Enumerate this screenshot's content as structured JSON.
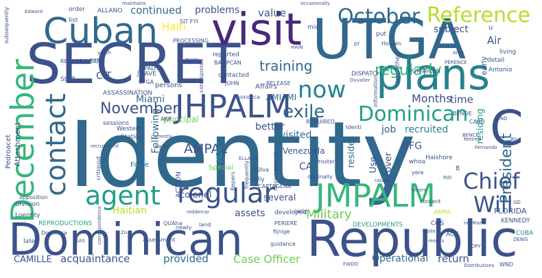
{
  "words": {
    "identity": "Identity",
    "secret": "SECRET",
    "utga": "UTGA",
    "dominican_republic_1": "Dominican",
    "dominican_republic_2": "Republic",
    "visit": "visit",
    "cuban": "Cuban",
    "plans": "plans",
    "jhpalm": "JHPALM",
    "jmpalm": "JMPALM",
    "december": "December",
    "regular": "regular",
    "agent": "agent",
    "contact": "contact",
    "october": "October",
    "reference": "Reference",
    "now": "now",
    "c": "C",
    "dominican": "Dominican",
    "chief": "Chief",
    "will": "Will",
    "president": "President",
    "november": "November",
    "exile": "exile",
    "military": "Military",
    "haiti": "Haiti",
    "ampal": "AMPAL",
    "training": "training",
    "regularly": "regularly",
    "continued": "continued",
    "problems": "problems",
    "value": "value",
    "subject": "subject",
    "air": "Air",
    "months": "Months",
    "time": "time",
    "miami": "Miami",
    "amiami": "AMIAMI",
    "following": "Following",
    "better": "better",
    "visited": "visited",
    "job": "job",
    "recruited": "recruited",
    "venezuela": "Venezuela",
    "resides": "resides",
    "ca": "CA",
    "ufg": "UFG",
    "use": "Use",
    "cover": "cover",
    "several": "several",
    "colonel": "colonel",
    "haitian": "Haitian",
    "assets": "assets",
    "acquaintance": "acquaintance",
    "provided": "provided",
    "case_officer": "Case Officer",
    "operational": "Operational",
    "return": "return",
    "camille": "CAMILLE",
    "cit": "CIT",
    "principal": "principal",
    "florida": "FLORIDA",
    "action": "ACTION",
    "force": "Force",
    "special": "Special",
    "hdc": "HDC",
    "kennedy": "KENNEDY",
    "cuba": "CUBA",
    "cos": "COS",
    "act": "ACT",
    "ampa": "AMPA",
    "developments": "DEVELOPMENTS",
    "reproductions": "REPRODUCTIONS",
    "division": "Division",
    "loentity": "Loentity",
    "later": "later",
    "attachment": "Attachment",
    "pedroacet": "Pedroacet",
    "sessions": "sessions",
    "assassination": "ASSASSINATION",
    "jmave": "JMAVE",
    "jhpalh": "JHPALH",
    "ufga": "UFGA",
    "persons": "persons",
    "staff": "Staff",
    "records": "RECORDS",
    "banh": "BANH",
    "processing": "PROCESSING",
    "sit_fyi": "SIT FYI",
    "allano": "ALLANO",
    "order": "order",
    "list": "list",
    "subsequently": "subsequently",
    "reported": "reported",
    "bampcan": "BAMPCAN",
    "contacted": "contacted",
    "john": "JOHN",
    "release": "RELEASE",
    "affairs": "Affairs",
    "corresponds": "corresponds",
    "konocca": "konocca",
    "dispatch": "DISPATCH",
    "mid": "mid",
    "put": "put",
    "strengthen": "strengthen",
    "honten": "Honten",
    "information": "information",
    "pominican": "POMINICAN",
    "antonio": "Antonio",
    "detail": "detail",
    "living": "living",
    "residing": "residing",
    "early": "early",
    "benoe": "BENOE",
    "card": "CARD",
    "u": "u",
    "required": "REQUIRED",
    "identi": "Identi",
    "prostene": "Prostene",
    "navarapermal": "navarapermal",
    "haishore": "Haishore",
    "whoa": "whoa",
    "yere": "yere",
    "b": "B",
    "originally": "originally",
    "tidly": "tidly",
    "20lva": "20lva",
    "frequently": "frequently",
    "repers": "Repers",
    "developed": "developed",
    "perieke": "PERIERE",
    "guidance": "guidance",
    "fijnige": "fijnige",
    "carly": "carly",
    "content": "content",
    "critiqusd": "critiqusd",
    "assessment": "assessment",
    "western": "Western",
    "station": "Station",
    "batis": "batis",
    "akr": "AKR",
    "quaha": "QUAha",
    "newly": "newly",
    "land": "land",
    "dominica": "Dominica",
    "opposition": "opposition",
    "cartagena": "CARTAGENA",
    "maintains": "maintains",
    "occasionally": "occasionally",
    "hain": "HAIN",
    "edward": "Edward",
    "many": "many",
    "perence": "PERENCE",
    "retired": "Retired",
    "fernando": "Fernando",
    "bence": "BENCE",
    "iindmiami": "indMiami",
    "rasularly": "rasularly",
    "results": "results",
    "site": "site",
    "copy": "COPY",
    "sas": "SAS",
    "duvalier": "Duvalier",
    "pr": "pr",
    "recruitment": "recruitment",
    "fiche": "fiche",
    "area": "area",
    "youth": "youth",
    "arey": "Arey",
    "bisa": "Bisa",
    "rid": "RID",
    "tesere": "tesere",
    "wnd": "WND",
    "wnd2": "WND",
    "distributions": "Distributions",
    "fwdo": "FWDO",
    "zo": "Zo",
    "correspondence": "correspondence",
    "ellaga": "ELLAGA",
    "dayiti": "dayiti",
    "pajava": "PAJAVA",
    "mvaphed": "mvaphed",
    "gd": "GD",
    "redderrar": "redderrar",
    "jimino": "JIMINO",
    "denis": "DENIS",
    "currently": "currently",
    "ipsa": "ipsa",
    "mamp": "MAMP",
    "sid": "sid"
  }
}
